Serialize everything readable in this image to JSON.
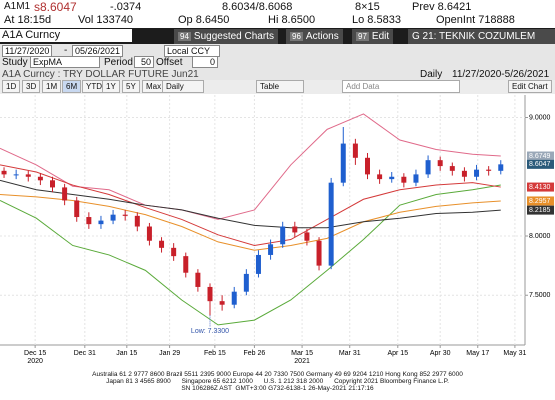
{
  "quote": {
    "ticker": "A1M1",
    "last": "s8.6047",
    "change": "-.0374",
    "bid_ask": "8.6034/8.6068",
    "size": "8×15",
    "prev": "Prev 8.6421",
    "time": "At 18:15d",
    "volume": "Vol 133740",
    "open": "Op 8.6450",
    "high": "Hi 8.6500",
    "low": "Lo 8.5833",
    "open_interest": "OpenInt 718888"
  },
  "command": {
    "security": "A1A Curncy",
    "buttons": [
      {
        "num": "94",
        "label": "Suggested Charts"
      },
      {
        "num": "96",
        "label": "Actions"
      },
      {
        "num": "97",
        "label": "Edit"
      }
    ],
    "page": "G 21: TEKNIK COZUMLEM"
  },
  "range": {
    "start": "11/27/2020",
    "sep": "-",
    "end": "05/26/2021",
    "currency": "Local CCY"
  },
  "study": {
    "label": "Study",
    "name": "ExpMA",
    "period_label": "Period",
    "period": "50",
    "offset_label": "Offset",
    "offset": "0"
  },
  "toolbar": {
    "periods": [
      "1D",
      "3D",
      "1M",
      "6M",
      "YTD",
      "1Y",
      "5Y",
      "Max"
    ],
    "frequency": "Daily",
    "table": "Table",
    "add_data": "Add Data",
    "edit_chart": "Edit Chart"
  },
  "chart_data": {
    "type": "candlestick",
    "title": "A1A Curncy : TRY DOLLAR FUTURE Jun21",
    "frequency": "Daily",
    "period": "11/27/2020-5/26/2021",
    "x": [
      1,
      4,
      7,
      10,
      13,
      16,
      19,
      22,
      25,
      28,
      31,
      34,
      37,
      40,
      43,
      46,
      49,
      52,
      55,
      58,
      61,
      64,
      67,
      70,
      73,
      76,
      79,
      82,
      85,
      88,
      91,
      94,
      97,
      100,
      103,
      106,
      109,
      112,
      115,
      118,
      121,
      124
    ],
    "open": [
      8.55,
      8.52,
      8.52,
      8.5,
      8.47,
      8.41,
      8.3,
      8.16,
      8.1,
      8.13,
      8.18,
      8.17,
      8.08,
      7.96,
      7.9,
      7.83,
      7.69,
      7.57,
      7.45,
      7.42,
      7.53,
      7.68,
      7.84,
      7.93,
      8.08,
      8.03,
      7.96,
      7.75,
      8.45,
      8.78,
      8.66,
      8.52,
      8.48,
      8.5,
      8.45,
      8.52,
      8.64,
      8.59,
      8.55,
      8.5,
      8.56,
      8.55
    ],
    "high": [
      8.58,
      8.56,
      8.55,
      8.53,
      8.5,
      8.44,
      8.33,
      8.2,
      8.17,
      8.22,
      8.22,
      8.2,
      8.11,
      7.99,
      7.94,
      7.86,
      7.72,
      7.6,
      7.5,
      7.57,
      7.72,
      7.88,
      7.97,
      8.12,
      8.12,
      8.06,
      7.99,
      8.49,
      8.92,
      8.82,
      8.7,
      8.56,
      8.54,
      8.53,
      8.56,
      8.68,
      8.67,
      8.62,
      8.58,
      8.6,
      8.59,
      8.64
    ],
    "low": [
      8.49,
      8.48,
      8.46,
      8.43,
      8.37,
      8.26,
      8.12,
      8.06,
      8.06,
      8.1,
      8.13,
      8.04,
      7.92,
      7.86,
      7.79,
      7.65,
      7.53,
      7.33,
      7.37,
      7.39,
      7.5,
      7.65,
      7.8,
      7.9,
      7.99,
      7.92,
      7.71,
      7.72,
      8.42,
      8.6,
      8.48,
      8.44,
      8.45,
      8.41,
      8.42,
      8.49,
      8.55,
      8.51,
      8.46,
      8.47,
      8.51,
      8.52
    ],
    "close": [
      8.52,
      8.52,
      8.5,
      8.47,
      8.41,
      8.3,
      8.16,
      8.1,
      8.13,
      8.18,
      8.17,
      8.08,
      7.96,
      7.9,
      7.83,
      7.69,
      7.57,
      7.45,
      7.42,
      7.53,
      7.68,
      7.84,
      7.93,
      8.08,
      8.03,
      7.96,
      7.75,
      8.45,
      8.78,
      8.66,
      8.52,
      8.48,
      8.5,
      8.45,
      8.52,
      8.64,
      8.59,
      8.55,
      8.5,
      8.56,
      8.55,
      8.6047
    ],
    "close_label": "8.6047",
    "up_color": "#1f5fcf",
    "down_color": "#c8202a",
    "line_x": [
      0,
      9,
      18,
      27,
      36,
      45,
      54,
      63,
      72,
      81,
      90,
      99,
      108,
      117,
      124
    ],
    "lines": [
      {
        "color": "#e06a8a",
        "values": [
          8.74,
          8.6,
          8.42,
          8.39,
          8.26,
          8.22,
          8.14,
          8.22,
          8.6,
          8.9,
          9.03,
          8.81,
          8.73,
          8.69,
          8.6749
        ],
        "last_label": "8.6749",
        "tag_color": "#9aa8b8"
      },
      {
        "color": "#5aaa3a",
        "values": [
          8.3,
          8.15,
          7.92,
          7.84,
          7.71,
          7.46,
          7.25,
          7.29,
          7.46,
          7.71,
          7.97,
          8.26,
          8.35,
          8.39,
          8.43
        ]
      },
      {
        "color": "#d43a3a",
        "values": [
          8.6,
          8.54,
          8.43,
          8.35,
          8.24,
          8.14,
          8.01,
          7.92,
          7.97,
          8.14,
          8.31,
          8.39,
          8.43,
          8.45,
          8.413
        ],
        "last_label": "8.4130",
        "tag_color": "#d43a3a"
      },
      {
        "color": "#e8902a",
        "values": [
          8.35,
          8.33,
          8.3,
          8.25,
          8.18,
          8.08,
          7.95,
          7.88,
          7.92,
          7.98,
          8.12,
          8.2,
          8.25,
          8.28,
          8.2957
        ],
        "last_label": "8.2957",
        "tag_color": "#e8902a"
      },
      {
        "color": "#333333",
        "values": [
          8.47,
          8.39,
          8.35,
          8.31,
          8.26,
          8.22,
          8.15,
          8.09,
          8.07,
          8.07,
          8.12,
          8.15,
          8.19,
          8.2,
          8.2185
        ],
        "last_label": "8.2185",
        "tag_color": "#333333"
      }
    ],
    "xlim": [
      0,
      130
    ],
    "ylim": [
      7.08,
      9.19
    ],
    "xticks": [
      {
        "value": 8.7,
        "label": "Dec 15"
      },
      {
        "value": 21,
        "label": "Dec 31"
      },
      {
        "value": 31.4,
        "label": "Jan 15"
      },
      {
        "value": 42,
        "label": "Jan 29"
      },
      {
        "value": 53.2,
        "label": "Feb 15"
      },
      {
        "value": 63,
        "label": "Feb 26"
      },
      {
        "value": 74.8,
        "label": "Mar 15"
      },
      {
        "value": 86.6,
        "label": "Mar 31"
      },
      {
        "value": 98.5,
        "label": "Apr 15"
      },
      {
        "value": 109,
        "label": "Apr 30"
      },
      {
        "value": 118.3,
        "label": "May 17"
      },
      {
        "value": 127.5,
        "label": "May 31"
      }
    ],
    "year_labels": [
      {
        "value": 8.7,
        "label": "2020"
      },
      {
        "value": 74.8,
        "label": "2021"
      }
    ],
    "yticks": [
      {
        "value": 7.5,
        "label": "7.5000"
      },
      {
        "value": 8,
        "label": "8.0000"
      },
      {
        "value": 9,
        "label": "9.0000"
      }
    ],
    "annotation": {
      "text": "Low: 7.3300",
      "x": 52,
      "value": 7.33
    },
    "grid": true
  },
  "footer": {
    "lines": [
      "Australia 61 2 9777 8600 Brazil 5511 2395 9000 Europe 44 20 7330 7500 Germany 49 69 9204 1210 Hong Kong 852 2977 6000",
      "Japan 81 3 4565 8900      Singapore 65 6212 1000      U.S. 1 212 318 2000      Copyright 2021 Bloomberg Finance L.P.",
      "SN 106286Z AST  GMT+3:00 G732-6138-1 26-May-2021 21:17:16"
    ]
  }
}
